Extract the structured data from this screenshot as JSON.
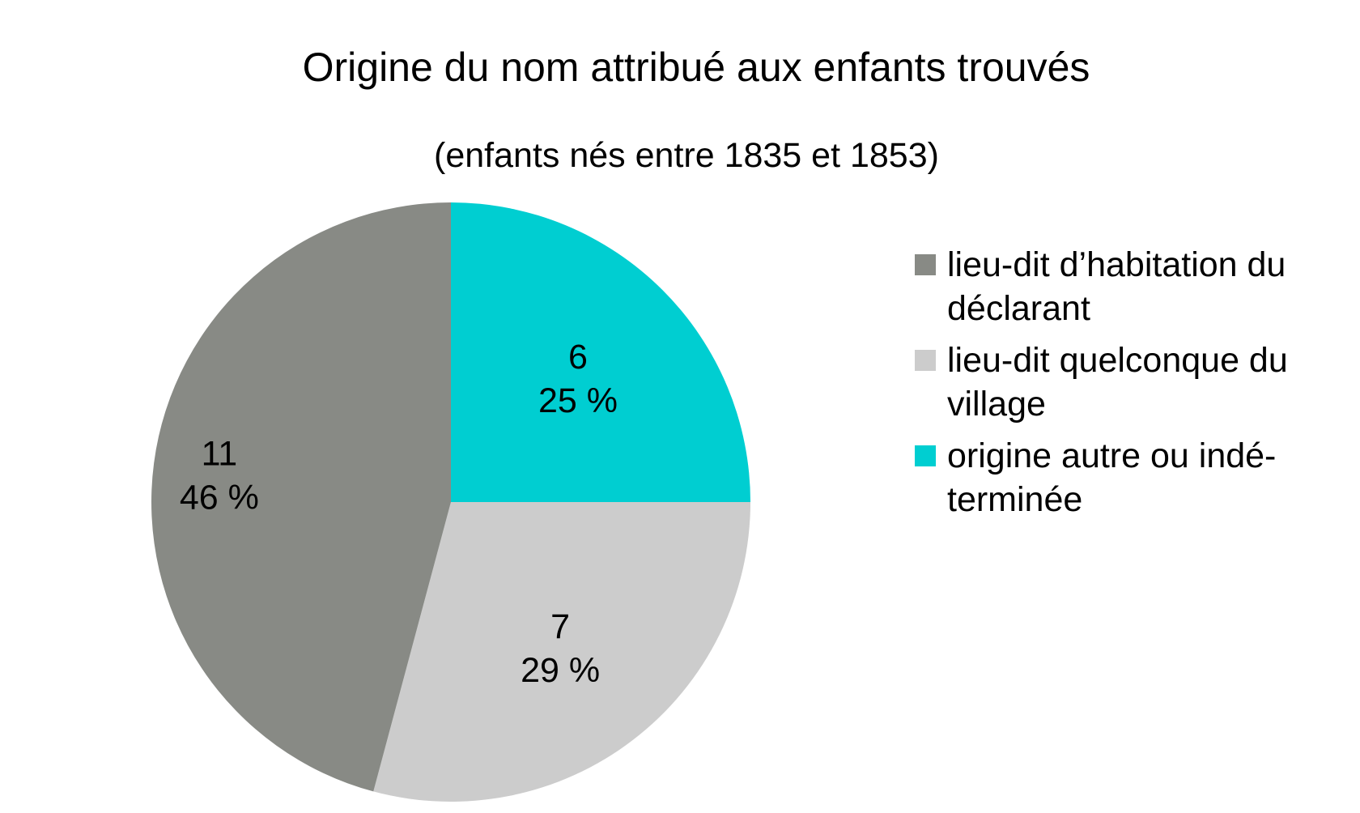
{
  "chart_data": {
    "type": "pie",
    "title": "Origine du nom attribué aux enfants trouvés",
    "subtitle": "(enfants nés entre 1835 et 1853)",
    "legend_position": "right",
    "slices": [
      {
        "name": "origine autre ou indéterminée",
        "legend_lines": [
          "origine autre ou indé-",
          "terminée"
        ],
        "value": 6,
        "value_label": "6",
        "percent_label": "25 %",
        "color": "#00CED1"
      },
      {
        "name": "lieu-dit quelconque du village",
        "legend_lines": [
          "lieu-dit quelconque du",
          "village"
        ],
        "value": 7,
        "value_label": "7",
        "percent_label": "29 %",
        "color": "#CCCCCC"
      },
      {
        "name": "lieu-dit d’habitation du déclarant",
        "legend_lines": [
          "lieu-dit d’habitation du",
          "déclarant"
        ],
        "value": 11,
        "value_label": "11",
        "percent_label": "46 %",
        "color": "#888A85"
      }
    ],
    "legend_order": [
      2,
      1,
      0
    ]
  }
}
